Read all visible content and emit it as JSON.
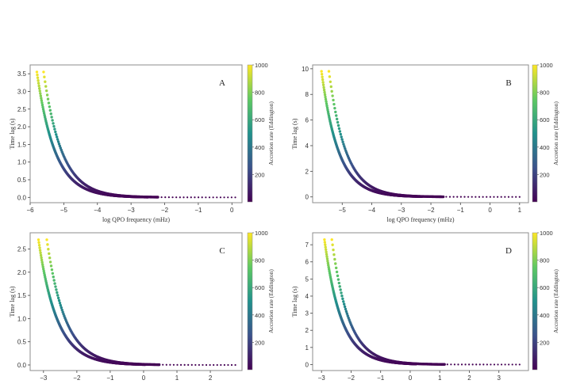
{
  "colormap": [
    "#440154",
    "#3b528b",
    "#21918c",
    "#5ec962",
    "#fde725"
  ],
  "chart_data": [
    {
      "type": "scatter",
      "panel_label": "A",
      "xlabel": "log QPO frequency (mHz)",
      "ylabel": "Time lag (s)",
      "colorbar_label": "Accretion rate (Eddington)",
      "colorbar_range": [
        0,
        1000
      ],
      "colorbar_ticks": [
        200,
        400,
        600,
        800,
        1000
      ],
      "xlim": [
        -6.0,
        0.3
      ],
      "ylim": [
        -0.15,
        3.75
      ],
      "xticks": [
        -6,
        -5,
        -4,
        -3,
        -2,
        -1,
        0
      ],
      "yticks": [
        0.0,
        0.5,
        1.0,
        1.5,
        2.0,
        2.5,
        3.0,
        3.5
      ],
      "ytick_decimals": 1,
      "x_min": -5.8,
      "x_end_lower": -2.5,
      "x_end_upper": 0.1,
      "curve_offset": 0.2,
      "y_max": 3.55,
      "decay": 1.85
    },
    {
      "type": "scatter",
      "panel_label": "B",
      "xlabel": "log QPO frequency (mHz)",
      "ylabel": "Time lag (s)",
      "colorbar_label": "Accretion rate (Eddington)",
      "colorbar_range": [
        0,
        1000
      ],
      "colorbar_ticks": [
        200,
        400,
        600,
        800,
        1000
      ],
      "xlim": [
        -6.0,
        1.3
      ],
      "ylim": [
        -0.45,
        10.3
      ],
      "xticks": [
        -5,
        -4,
        -3,
        -2,
        -1,
        0,
        1
      ],
      "yticks": [
        0,
        2,
        4,
        6,
        8,
        10
      ],
      "ytick_decimals": 0,
      "x_min": -5.7,
      "x_end_lower": -2.3,
      "x_end_upper": 1.0,
      "curve_offset": 0.25,
      "y_max": 9.8,
      "decay": 1.75
    },
    {
      "type": "scatter",
      "panel_label": "C",
      "xlabel": "log QPO frequency (mHz)",
      "ylabel": "Time lag (s)",
      "colorbar_label": "Accretion rate (Eddington)",
      "colorbar_range": [
        0,
        1000
      ],
      "colorbar_ticks": [
        200,
        400,
        600,
        800,
        1000
      ],
      "xlim": [
        -3.4,
        2.95
      ],
      "ylim": [
        -0.12,
        2.85
      ],
      "xticks": [
        -3,
        -2,
        -1,
        0,
        1,
        2
      ],
      "yticks": [
        0.0,
        0.5,
        1.0,
        1.5,
        2.0,
        2.5
      ],
      "ytick_decimals": 1,
      "x_min": -3.15,
      "x_end_lower": 0.05,
      "x_end_upper": 2.75,
      "curve_offset": 0.25,
      "y_max": 2.7,
      "decay": 1.8
    },
    {
      "type": "scatter",
      "panel_label": "D",
      "xlabel": "log QPO frequency (mHz)",
      "ylabel": "Time lag (s)",
      "colorbar_label": "Accretion rate (Eddington)",
      "colorbar_range": [
        0,
        1000
      ],
      "colorbar_ticks": [
        200,
        400,
        600,
        800,
        1000
      ],
      "xlim": [
        -3.3,
        4.0
      ],
      "ylim": [
        -0.35,
        7.7
      ],
      "xticks": [
        -3,
        -2,
        -1,
        0,
        1,
        2,
        3
      ],
      "yticks": [
        0,
        1,
        2,
        3,
        4,
        5,
        6,
        7
      ],
      "ytick_decimals": 0,
      "x_min": -2.9,
      "x_end_lower": 0.2,
      "x_end_upper": 3.7,
      "curve_offset": 0.25,
      "y_max": 7.3,
      "decay": 1.75
    }
  ]
}
